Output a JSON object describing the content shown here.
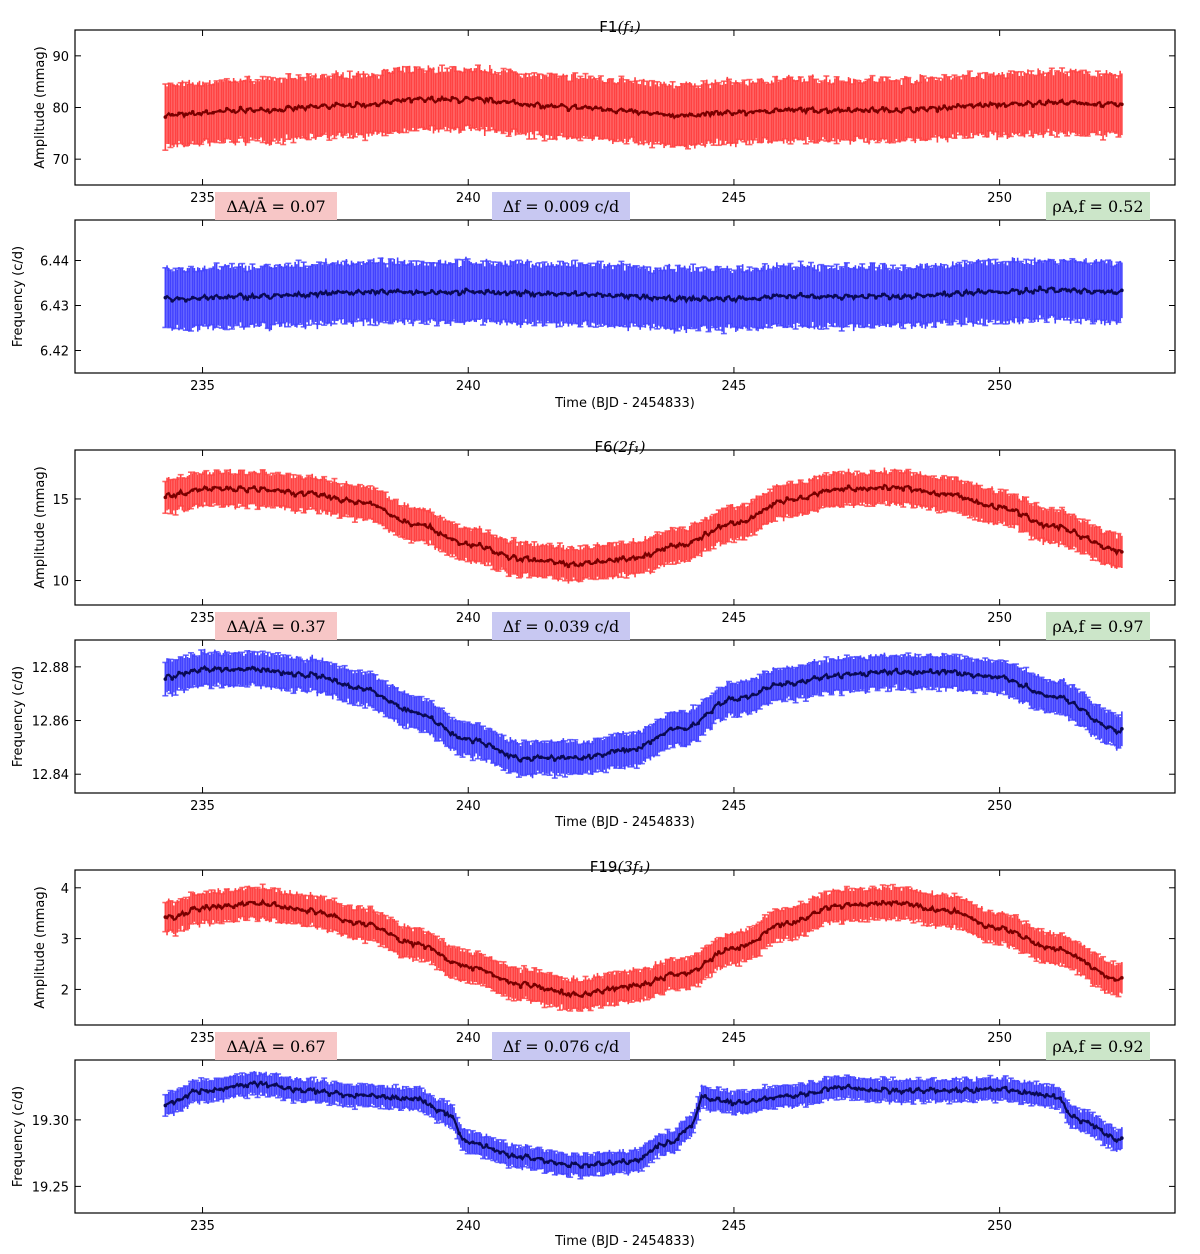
{
  "colors": {
    "amplitude_band": "#ff3333",
    "amplitude_line": "#7a0000",
    "frequency_band": "#3333ff",
    "frequency_line": "#0a0a55",
    "amp_box": "#f7c6c6",
    "freq_box": "#c8c8f2",
    "corr_box": "#cce6c9"
  },
  "chart_data": [
    {
      "type": "line",
      "id": "F1",
      "title_prefix": "F1",
      "title_math": "(f₁)",
      "panels": {
        "amplitude": {
          "ylabel": "Amplitude (mmag)",
          "ylim": [
            65,
            95
          ],
          "yticks": [
            70,
            80,
            90
          ],
          "tick_labels": [
            "70",
            "80",
            "90"
          ],
          "x": [
            234.3,
            236,
            238,
            239,
            240,
            242,
            244,
            245,
            246,
            248,
            250,
            251,
            252.3
          ],
          "values": [
            78.5,
            79.5,
            80.5,
            81.5,
            81.5,
            80.0,
            78.5,
            79.0,
            79.5,
            79.5,
            80.5,
            81.0,
            80.5
          ],
          "error": 5.8
        },
        "frequency": {
          "ylabel": "Frequency (c/d)",
          "ylim": [
            6.415,
            6.449
          ],
          "yticks": [
            6.42,
            6.43,
            6.44
          ],
          "tick_labels": [
            "6.42",
            "6.43",
            "6.44"
          ],
          "x": [
            234.3,
            236,
            238,
            239,
            240,
            242,
            244,
            245,
            246,
            248,
            250,
            251,
            252.3
          ],
          "values": [
            6.4315,
            6.432,
            6.433,
            6.433,
            6.433,
            6.4325,
            6.4315,
            6.4315,
            6.432,
            6.432,
            6.433,
            6.4335,
            6.433
          ],
          "error": 0.0065
        }
      },
      "stats": {
        "amp_label": "ΔA/Ā = 0.07",
        "freq_label": "Δf = 0.009 c/d",
        "corr_label": "ρA,f = 0.52"
      }
    },
    {
      "type": "line",
      "id": "F6",
      "title_prefix": "F6",
      "title_math": "(2f₁)",
      "panels": {
        "amplitude": {
          "ylabel": "Amplitude (mmag)",
          "ylim": [
            8.5,
            18
          ],
          "yticks": [
            10,
            15
          ],
          "tick_labels": [
            "10",
            "15"
          ],
          "x": [
            234.3,
            235,
            236,
            237,
            238,
            239,
            240,
            241,
            242,
            243,
            244,
            245,
            246,
            247,
            248,
            249,
            250,
            251,
            252.3
          ],
          "values": [
            15.2,
            15.6,
            15.6,
            15.3,
            14.8,
            13.5,
            12.2,
            11.3,
            11.0,
            11.3,
            12.2,
            13.5,
            14.9,
            15.6,
            15.7,
            15.3,
            14.5,
            13.3,
            11.8
          ],
          "error": 1.0
        },
        "frequency": {
          "ylabel": "Frequency (c/d)",
          "ylim": [
            12.833,
            12.89
          ],
          "yticks": [
            12.84,
            12.86,
            12.88
          ],
          "tick_labels": [
            "12.84",
            "12.86",
            "12.88"
          ],
          "x": [
            234.3,
            235,
            236,
            237,
            238,
            239,
            240,
            241,
            242,
            243,
            244,
            245,
            246,
            247,
            248,
            249,
            250,
            251,
            252.3
          ],
          "values": [
            12.876,
            12.879,
            12.879,
            12.877,
            12.872,
            12.863,
            12.853,
            12.846,
            12.846,
            12.849,
            12.857,
            12.868,
            12.874,
            12.877,
            12.878,
            12.878,
            12.876,
            12.869,
            12.856
          ],
          "error": 0.006
        }
      },
      "stats": {
        "amp_label": "ΔA/Ā = 0.37",
        "freq_label": "Δf = 0.039 c/d",
        "corr_label": "ρA,f = 0.97"
      }
    },
    {
      "type": "line",
      "id": "F19",
      "title_prefix": "F19",
      "title_math": "(3f₁)",
      "panels": {
        "amplitude": {
          "ylabel": "Amplitude (mmag)",
          "ylim": [
            1.3,
            4.35
          ],
          "yticks": [
            2,
            3,
            4
          ],
          "tick_labels": [
            "2",
            "3",
            "4"
          ],
          "x": [
            234.3,
            235,
            236,
            237,
            238,
            239,
            240,
            241,
            242,
            243,
            244,
            245,
            246,
            247,
            248,
            249,
            250,
            251,
            252.3
          ],
          "values": [
            3.4,
            3.6,
            3.7,
            3.55,
            3.3,
            2.9,
            2.45,
            2.1,
            1.9,
            2.05,
            2.3,
            2.8,
            3.3,
            3.65,
            3.7,
            3.55,
            3.2,
            2.8,
            2.2
          ],
          "error": 0.3
        },
        "frequency": {
          "ylabel": "Frequency (c/d)",
          "ylim": [
            19.23,
            19.345
          ],
          "yticks": [
            19.25,
            19.3
          ],
          "tick_labels": [
            "19.25",
            "19.30"
          ],
          "x": [
            234.3,
            235,
            236,
            237,
            238,
            239,
            239.6,
            240,
            241,
            242,
            243,
            243.8,
            244.2,
            244.4,
            245,
            246,
            247,
            248,
            249,
            250,
            251,
            251.5,
            252.3
          ],
          "values": [
            19.312,
            19.322,
            19.327,
            19.322,
            19.318,
            19.316,
            19.305,
            19.283,
            19.272,
            19.266,
            19.268,
            19.283,
            19.295,
            19.317,
            19.313,
            19.318,
            19.324,
            19.322,
            19.322,
            19.323,
            19.318,
            19.3,
            19.285
          ],
          "error": 0.008
        }
      },
      "stats": {
        "amp_label": "ΔA/Ā = 0.67",
        "freq_label": "Δf = 0.076 c/d",
        "corr_label": "ρA,f = 0.92"
      }
    }
  ],
  "shared_x": {
    "xlim": [
      232.6,
      253.3
    ],
    "xticks": [
      235,
      240,
      245,
      250
    ],
    "tick_labels": [
      "235",
      "240",
      "245",
      "250"
    ],
    "xlabel": "Time (BJD - 2454833)"
  }
}
